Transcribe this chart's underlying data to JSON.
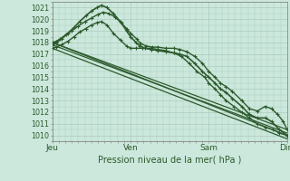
{
  "title": "Pression niveau de la mer( hPa )",
  "ylabel_values": [
    1010,
    1011,
    1012,
    1013,
    1014,
    1015,
    1016,
    1017,
    1018,
    1019,
    1020,
    1021
  ],
  "xlabels": [
    "Jeu",
    "Ven",
    "Sam",
    "Dim"
  ],
  "xpositions": [
    0,
    1,
    2,
    3
  ],
  "bg_color": "#cce8dc",
  "grid_color": "#aaccbb",
  "line_color_dark": "#2d5a2d",
  "line_color_mid": "#3a7a3a",
  "ylim": [
    1009.8,
    1021.5
  ],
  "xlim": [
    0,
    3
  ],
  "straight_lines": [
    [
      [
        0,
        1018.0
      ],
      [
        3,
        1010.0
      ]
    ],
    [
      [
        0,
        1017.8
      ],
      [
        3,
        1010.2
      ]
    ],
    [
      [
        0,
        1017.5
      ],
      [
        3,
        1009.7
      ]
    ],
    [
      [
        0,
        1018.0
      ],
      [
        3,
        1010.5
      ]
    ]
  ],
  "curved_lines": [
    {
      "x": [
        0.0,
        0.05,
        0.1,
        0.18,
        0.25,
        0.33,
        0.42,
        0.5,
        0.58,
        0.65,
        0.72,
        0.8,
        0.88,
        0.95,
        1.0,
        1.08,
        1.13,
        1.2,
        1.28,
        1.35,
        1.45,
        1.55,
        1.63,
        1.72,
        1.82,
        1.92,
        2.0,
        2.08,
        2.15,
        2.22,
        2.3,
        2.42,
        2.52,
        2.62,
        2.72,
        2.8,
        2.88,
        2.95,
        3.0
      ],
      "y": [
        1018.0,
        1018.1,
        1018.3,
        1018.7,
        1019.0,
        1019.4,
        1019.8,
        1020.1,
        1020.4,
        1020.6,
        1020.5,
        1020.2,
        1019.7,
        1019.2,
        1018.8,
        1018.3,
        1017.9,
        1017.7,
        1017.6,
        1017.6,
        1017.5,
        1017.5,
        1017.4,
        1017.2,
        1016.8,
        1016.2,
        1015.5,
        1015.0,
        1014.5,
        1014.2,
        1013.8,
        1013.0,
        1012.3,
        1012.1,
        1012.5,
        1012.3,
        1011.8,
        1011.2,
        1010.5
      ]
    },
    {
      "x": [
        0.0,
        0.05,
        0.12,
        0.2,
        0.28,
        0.35,
        0.43,
        0.5,
        0.57,
        0.63,
        0.7,
        0.78,
        0.87,
        0.95,
        1.0,
        1.07,
        1.12,
        1.18,
        1.27,
        1.35,
        1.45,
        1.55,
        1.63,
        1.72,
        1.82,
        1.92,
        2.0,
        2.08,
        2.15,
        2.22,
        2.3,
        2.42,
        2.52,
        2.62,
        2.72,
        2.8,
        2.9,
        3.0
      ],
      "y": [
        1017.8,
        1018.0,
        1018.3,
        1018.8,
        1019.3,
        1019.8,
        1020.3,
        1020.7,
        1021.0,
        1021.2,
        1021.0,
        1020.5,
        1019.8,
        1019.0,
        1018.5,
        1018.0,
        1017.7,
        1017.5,
        1017.4,
        1017.3,
        1017.2,
        1017.1,
        1017.0,
        1016.8,
        1016.2,
        1015.5,
        1015.0,
        1014.5,
        1014.0,
        1013.7,
        1013.2,
        1012.5,
        1011.8,
        1011.5,
        1011.5,
        1011.2,
        1010.5,
        1010.0
      ]
    },
    {
      "x": [
        0.0,
        0.05,
        0.12,
        0.2,
        0.28,
        0.35,
        0.43,
        0.5,
        0.57,
        0.63,
        0.7,
        0.78,
        0.87,
        0.95,
        1.0,
        1.07,
        1.15,
        1.25,
        1.35,
        1.45,
        1.55,
        1.65,
        1.75,
        1.85,
        1.95,
        2.0,
        2.08,
        2.15,
        2.22,
        2.32,
        2.42,
        2.52,
        2.62,
        2.72,
        2.82,
        2.9,
        3.0
      ],
      "y": [
        1017.5,
        1017.6,
        1017.8,
        1018.1,
        1018.5,
        1018.9,
        1019.2,
        1019.5,
        1019.7,
        1019.8,
        1019.5,
        1018.8,
        1018.2,
        1017.7,
        1017.5,
        1017.5,
        1017.5,
        1017.5,
        1017.4,
        1017.3,
        1017.1,
        1016.8,
        1016.2,
        1015.5,
        1015.0,
        1014.5,
        1014.0,
        1013.5,
        1013.0,
        1012.5,
        1012.0,
        1011.5,
        1011.0,
        1010.7,
        1010.5,
        1010.2,
        1010.0
      ]
    }
  ]
}
